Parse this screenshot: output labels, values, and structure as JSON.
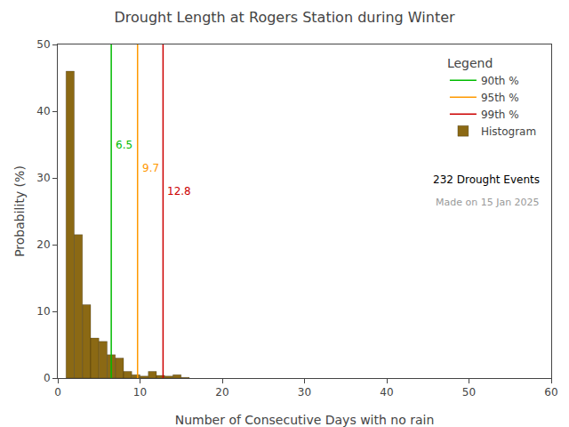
{
  "chart_data": {
    "type": "histogram",
    "title": "Drought Length at Rogers Station during Winter",
    "x_label": "Number of Consecutive Days with no rain",
    "y_label": "Probability (%)",
    "xlim": [
      0,
      60
    ],
    "ylim": [
      0,
      50
    ],
    "xticks": [
      0,
      10,
      20,
      30,
      40,
      50,
      60
    ],
    "yticks": [
      0,
      10,
      20,
      30,
      40,
      50
    ],
    "grid": false,
    "legend": "upper right",
    "legend_title": "Legend",
    "series": [
      {
        "name": "90th %",
        "type": "vline",
        "x": 6.5,
        "color": "#00bb00",
        "data_labels": true
      },
      {
        "name": "95th %",
        "type": "vline",
        "x": 9.7,
        "color": "#ff9900",
        "data_labels": true
      },
      {
        "name": "99th %",
        "type": "vline",
        "x": 12.8,
        "color": "#cc0000",
        "data_labels": true
      },
      {
        "name": "Histogram",
        "type": "histogram",
        "color": "#8B6914",
        "bins": [
          1,
          2,
          3,
          4,
          5,
          6,
          7,
          8,
          9,
          10,
          11,
          12,
          13,
          14,
          15,
          16
        ],
        "values": [
          46.0,
          21.5,
          11.0,
          6.0,
          5.5,
          3.5,
          3.0,
          1.0,
          0.5,
          0.3,
          1.0,
          0.4,
          0.3,
          0.5,
          0.1
        ]
      }
    ],
    "annotations": [
      "232 Drought Events",
      "Made on 15 Jan 2025"
    ]
  }
}
